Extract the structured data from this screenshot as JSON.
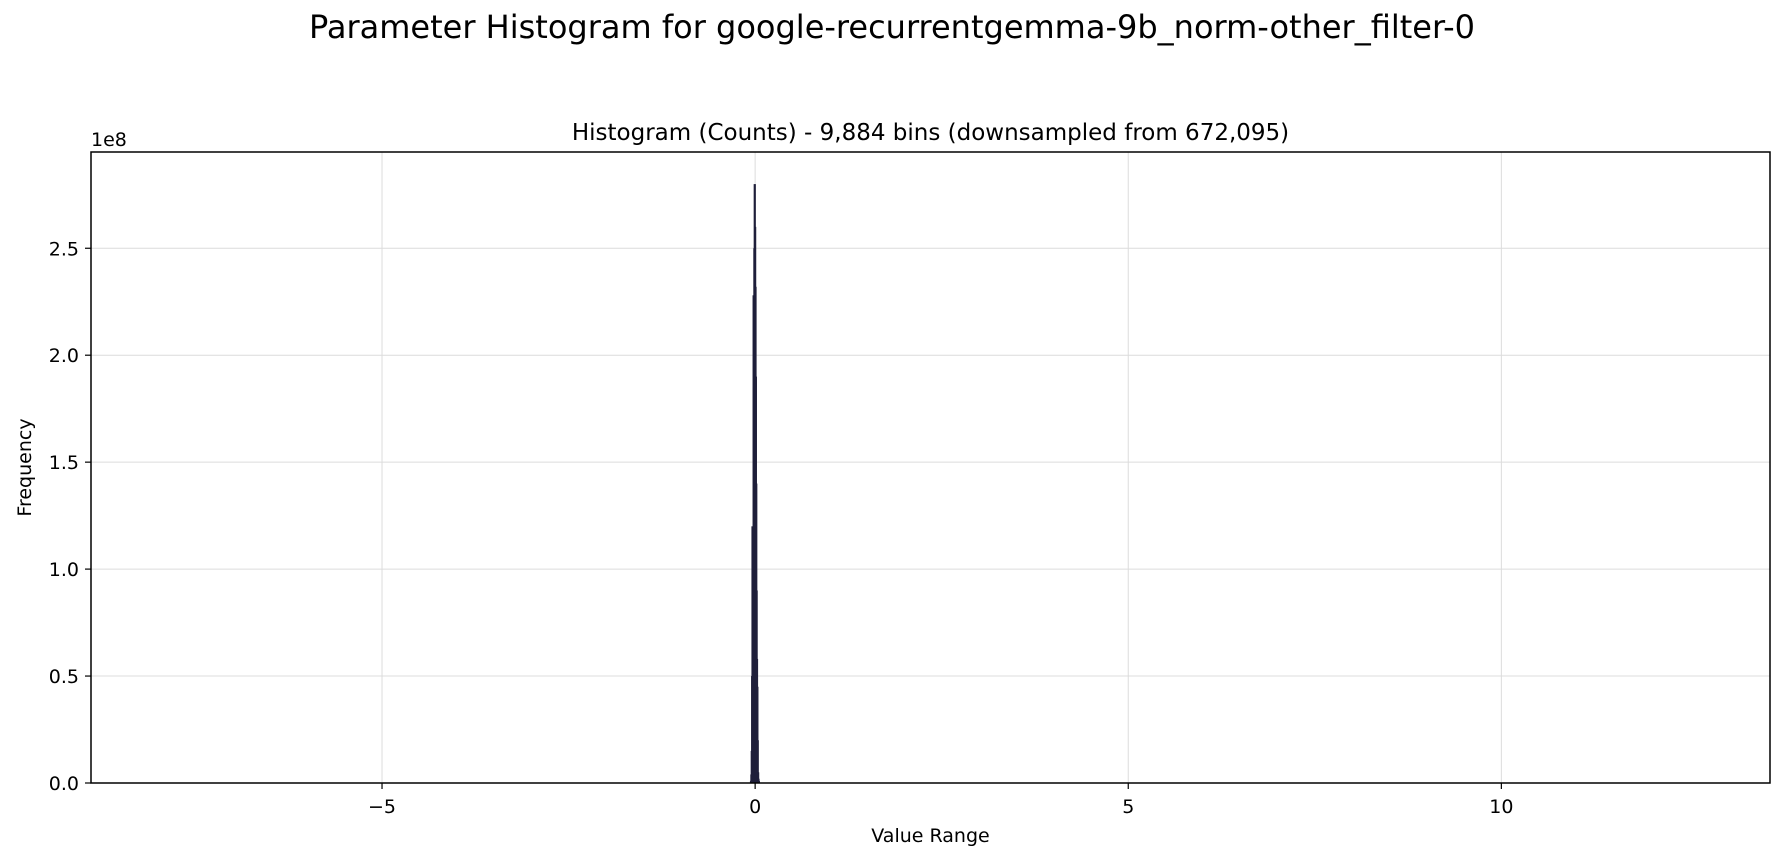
{
  "chart_data": {
    "type": "bar",
    "suptitle": "Parameter Histogram for google-recurrentgemma-9b_norm-other_filter-0",
    "title": "Histogram (Counts) - 9,884 bins (downsampled from 672,095)",
    "xlabel": "Value Range",
    "ylabel": "Frequency",
    "y_offset_label": "1e8",
    "xlim": [
      -8.9,
      13.6
    ],
    "ylim": [
      0,
      2.95
    ],
    "y_scale": "1e8",
    "xticks": [
      -5,
      0,
      5,
      10
    ],
    "xtick_labels": [
      "−5",
      "0",
      "5",
      "10"
    ],
    "yticks": [
      0.0,
      0.5,
      1.0,
      1.5,
      2.0,
      2.5
    ],
    "ytick_labels": [
      "0.0",
      "0.5",
      "1.0",
      "1.5",
      "2.0",
      "2.5"
    ],
    "grid": true,
    "bar_color": "#1f1f3a",
    "series": [
      {
        "bins": [
          {
            "x": -0.055,
            "y": 0.01
          },
          {
            "x": -0.05,
            "y": 0.04
          },
          {
            "x": -0.045,
            "y": 0.15
          },
          {
            "x": -0.04,
            "y": 0.5
          },
          {
            "x": -0.035,
            "y": 1.2
          },
          {
            "x": -0.03,
            "y": 0.45
          },
          {
            "x": -0.025,
            "y": 0.9
          },
          {
            "x": -0.02,
            "y": 2.28
          },
          {
            "x": -0.015,
            "y": 1.85
          },
          {
            "x": -0.01,
            "y": 2.5
          },
          {
            "x": -0.005,
            "y": 2.8
          },
          {
            "x": 0.0,
            "y": 2.6
          },
          {
            "x": 0.005,
            "y": 2.32
          },
          {
            "x": 0.01,
            "y": 1.9
          },
          {
            "x": 0.015,
            "y": 1.4
          },
          {
            "x": 0.02,
            "y": 0.9
          },
          {
            "x": 0.025,
            "y": 0.58
          },
          {
            "x": 0.03,
            "y": 0.45
          },
          {
            "x": 0.035,
            "y": 0.2
          },
          {
            "x": 0.04,
            "y": 0.05
          },
          {
            "x": 0.045,
            "y": 0.02
          },
          {
            "x": 0.05,
            "y": 0.01
          }
        ]
      }
    ]
  }
}
